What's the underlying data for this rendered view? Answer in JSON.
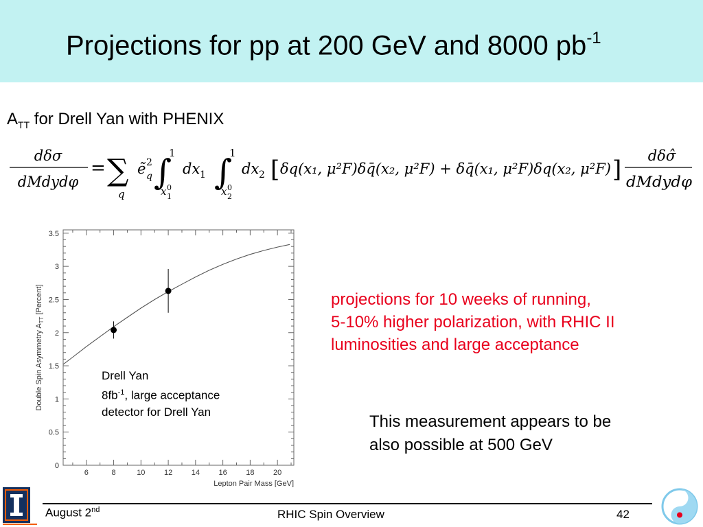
{
  "slide": {
    "title_main": "Projections for pp at 200 GeV and 8000 pb",
    "title_sup": "-1",
    "subtitle_a": "A",
    "subtitle_sub": "TT",
    "subtitle_rest": " for Drell Yan with PHENIX"
  },
  "formula": {
    "lhs_num": "dδσ",
    "lhs_den": "dMdydφ",
    "eq": "=",
    "sum": "∑",
    "sum_idx": "q",
    "coef": "ẽ",
    "coef_sup": "2",
    "coef_sub": "q",
    "int1_upper": "1",
    "int1_lower": "x",
    "int1_lower_sup": "0",
    "int1_lower_sub": "1",
    "dx1": "dx",
    "dx1_sub": "1",
    "int2_upper": "1",
    "int2_lower": "x",
    "int2_lower_sup": "0",
    "int2_lower_sub": "2",
    "dx2": "dx",
    "dx2_sub": "2",
    "bracket_content": "δq(x₁, μ²F)δq̄(x₂, μ²F) + δq̄(x₁, μ²F)δq(x₂, μ²F)",
    "rhs_num": "dδσ̂",
    "rhs_den": "dMdydφ"
  },
  "notes": {
    "red_lines": [
      "projections for 10 weeks of running,",
      "5-10% higher polarization, with RHIC II",
      "luminosities and large acceptance"
    ],
    "black_lines": [
      "This measurement appears to be",
      "also possible at 500 GeV"
    ]
  },
  "chart_text": {
    "line1": "Drell Yan",
    "line2_pre": "8fb",
    "line2_sup": "-1",
    "line2_post": ", large acceptance",
    "line3": "detector for Drell Yan"
  },
  "footer": {
    "date": "August 2",
    "date_sup": "nd",
    "center": "RHIC Spin Overview",
    "page": "42"
  },
  "chart_data": {
    "type": "scatter",
    "xlabel": "Lepton Pair Mass [GeV]",
    "ylabel": "Double Spin Asymmetry A",
    "ylabel_sub": "TT",
    "ylabel_post": " [Percent]",
    "xlim": [
      4.3,
      21.2
    ],
    "ylim": [
      0,
      3.55
    ],
    "xticks": [
      6,
      8,
      10,
      12,
      14,
      16,
      18,
      20
    ],
    "yticks": [
      0,
      0.5,
      1,
      1.5,
      2,
      2.5,
      3,
      3.5
    ],
    "ytick_labels": [
      "0",
      "0.5",
      "1",
      "1.5",
      "2",
      "2.5",
      "3",
      "3.5"
    ],
    "curve": {
      "x": [
        4.3,
        5,
        6,
        7,
        8,
        9,
        10,
        11,
        12,
        13,
        14,
        15,
        16,
        17,
        18,
        19,
        20,
        20.9
      ],
      "y": [
        1.52,
        1.63,
        1.79,
        1.94,
        2.09,
        2.23,
        2.37,
        2.5,
        2.62,
        2.73,
        2.84,
        2.94,
        3.03,
        3.11,
        3.18,
        3.24,
        3.29,
        3.33
      ]
    },
    "points": [
      {
        "x": 8,
        "y": 2.04,
        "err": 0.13
      },
      {
        "x": 12,
        "y": 2.63,
        "err": 0.33
      }
    ]
  }
}
